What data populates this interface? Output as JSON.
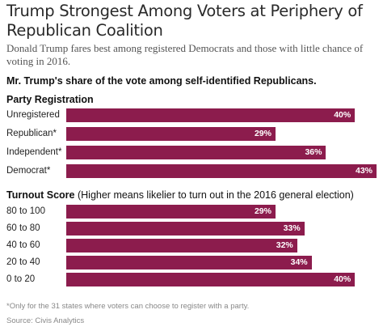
{
  "header": {
    "title": "Trump Strongest Among Voters at Periphery of Republican Coalition",
    "subtitle": "Donald Trump fares best among registered Democrats and those with little chance of voting in 2016.",
    "intro": "Mr. Trump's share of the vote among self-identified Republicans."
  },
  "chart_data": [
    {
      "type": "bar",
      "orientation": "horizontal",
      "title": "Party Registration",
      "categories": [
        "Unregistered",
        "Republican*",
        "Independent*",
        "Democrat*"
      ],
      "values": [
        40,
        29,
        36,
        43
      ],
      "value_labels": [
        "40%",
        "29%",
        "36%",
        "43%"
      ],
      "unit": "%",
      "xlim": [
        0,
        43
      ],
      "bar_color": "#8c1c4d"
    },
    {
      "type": "bar",
      "orientation": "horizontal",
      "title": "Turnout Score",
      "title_note": "(Higher means likelier to turn out in the 2016 general election)",
      "categories": [
        "80 to 100",
        "60 to 80",
        "40 to 60",
        "20 to 40",
        "0 to 20"
      ],
      "values": [
        29,
        33,
        32,
        34,
        40
      ],
      "value_labels": [
        "29%",
        "33%",
        "32%",
        "34%",
        "40%"
      ],
      "unit": "%",
      "xlim": [
        0,
        43
      ],
      "bar_color": "#8c1c4d"
    }
  ],
  "footer": {
    "footnote": "*Only for the 31 states where voters can choose to register with a party.",
    "source": "Source: Civis Analytics"
  }
}
